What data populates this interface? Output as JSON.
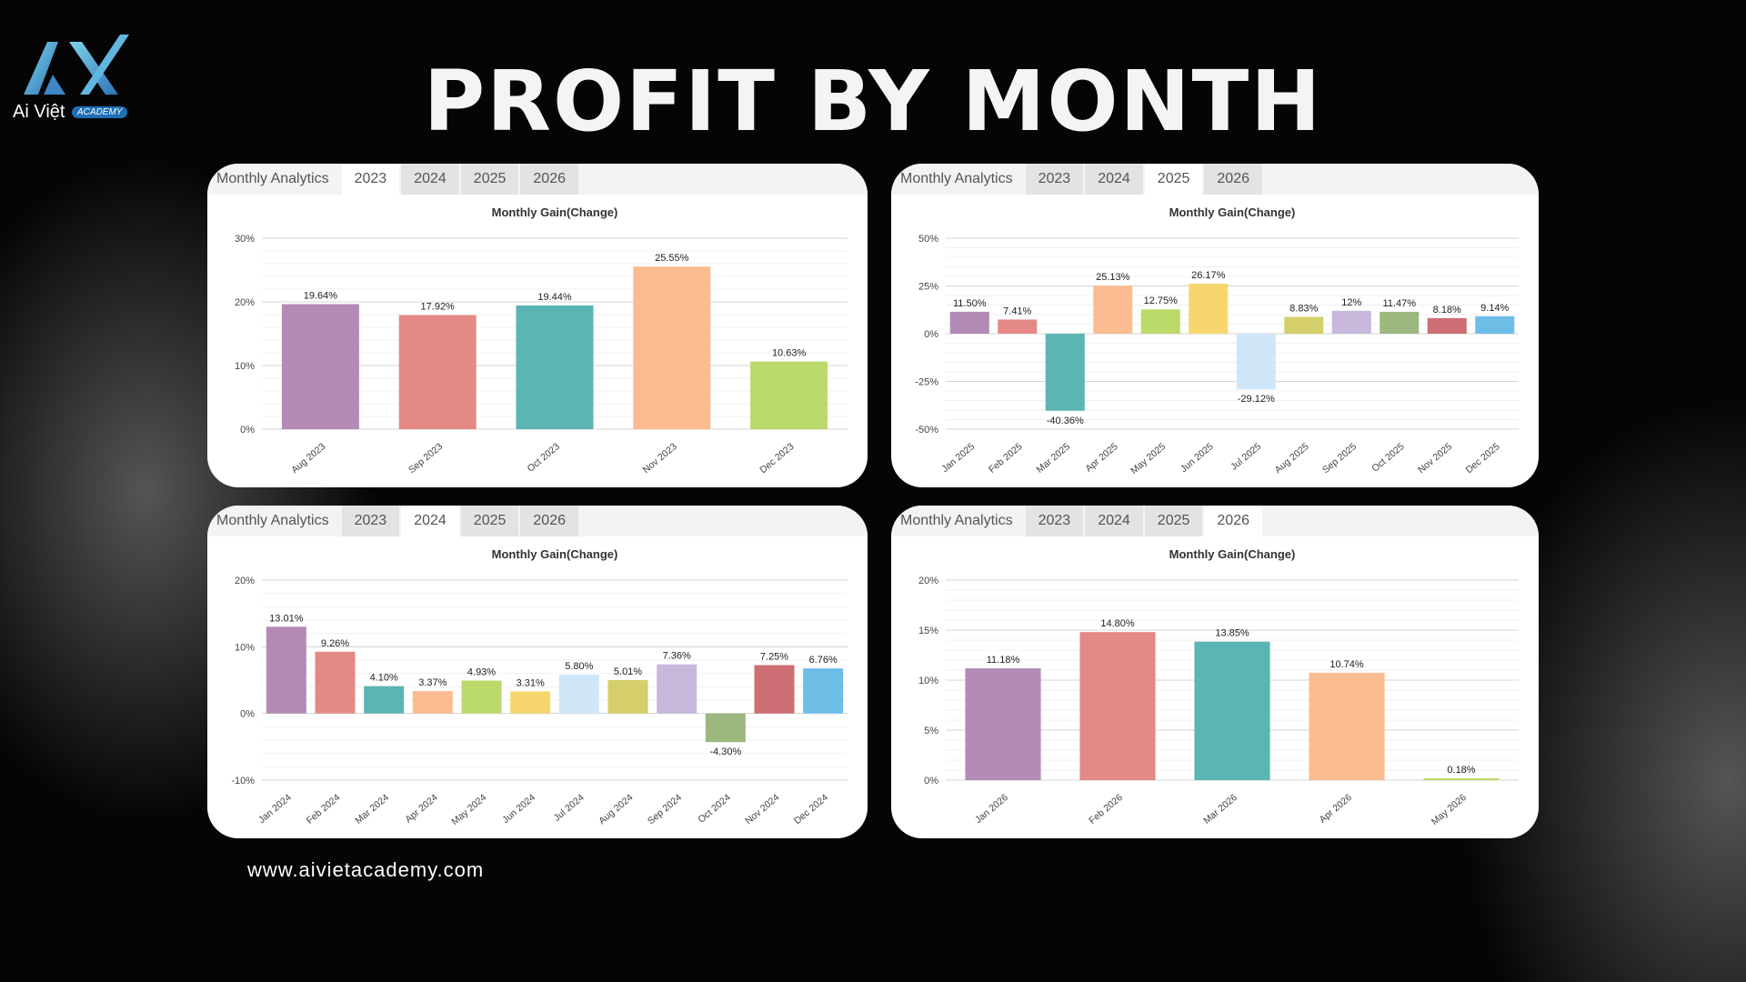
{
  "header": {
    "title": "PROFIT BY MONTH",
    "logo_text": "Ai Việt",
    "logo_badge": "ACADEMY"
  },
  "footer": {
    "url": "www.aivietacademy.com"
  },
  "tab_label": "Monthly Analytics",
  "years": [
    "2023",
    "2024",
    "2025",
    "2026"
  ],
  "colors": [
    "#b48ab6",
    "#e58986",
    "#5bb5b3",
    "#fbbc92",
    "#bcd96c",
    "#f7d76d",
    "#cfe6f8",
    "#d4cf6a",
    "#c8b8dc",
    "#9cb87e",
    "#cc6e73",
    "#6ebde7"
  ],
  "chart_data": [
    {
      "type": "bar",
      "active_year": "2023",
      "title": "Monthly Gain(Change)",
      "categories": [
        "Aug 2023",
        "Sep 2023",
        "Oct 2023",
        "Nov 2023",
        "Dec 2023"
      ],
      "values": [
        19.64,
        17.92,
        19.44,
        25.55,
        10.63
      ],
      "labels": [
        "19.64%",
        "17.92%",
        "19.44%",
        "25.55%",
        "10.63%"
      ],
      "ylim": [
        0,
        30
      ],
      "yticks": [
        0,
        10,
        20,
        30
      ],
      "ytick_labels": [
        "0%",
        "10%",
        "20%",
        "30%"
      ],
      "colors": [
        "#b48ab6",
        "#e58986",
        "#5bb5b3",
        "#fbbc92",
        "#bcd96c"
      ]
    },
    {
      "type": "bar",
      "active_year": "2025",
      "title": "Monthly Gain(Change)",
      "categories": [
        "Jan 2025",
        "Feb 2025",
        "Mar 2025",
        "Apr 2025",
        "May 2025",
        "Jun 2025",
        "Jul 2025",
        "Aug 2025",
        "Sep 2025",
        "Oct 2025",
        "Nov 2025",
        "Dec 2025"
      ],
      "values": [
        11.5,
        7.41,
        -40.36,
        25.13,
        12.75,
        26.17,
        -29.12,
        8.83,
        12,
        11.47,
        8.18,
        9.14
      ],
      "labels": [
        "11.50%",
        "7.41%",
        "-40.36%",
        "25.13%",
        "12.75%",
        "26.17%",
        "-29.12%",
        "8.83%",
        "12%",
        "11.47%",
        "8.18%",
        "9.14%"
      ],
      "ylim": [
        -50,
        50
      ],
      "yticks": [
        -50,
        -25,
        0,
        25,
        50
      ],
      "ytick_labels": [
        "-50%",
        "-25%",
        "0%",
        "25%",
        "50%"
      ],
      "colors": [
        "#b48ab6",
        "#e58986",
        "#5bb5b3",
        "#fbbc92",
        "#bcd96c",
        "#f7d76d",
        "#cfe6f8",
        "#d4cf6a",
        "#c8b8dc",
        "#9cb87e",
        "#cc6e73",
        "#6ebde7"
      ]
    },
    {
      "type": "bar",
      "active_year": "2024",
      "title": "Monthly Gain(Change)",
      "categories": [
        "Jan 2024",
        "Feb 2024",
        "Mar 2024",
        "Apr 2024",
        "May 2024",
        "Jun 2024",
        "Jul 2024",
        "Aug 2024",
        "Sep 2024",
        "Oct 2024",
        "Nov 2024",
        "Dec 2024"
      ],
      "values": [
        13.01,
        9.26,
        4.1,
        3.37,
        4.93,
        3.31,
        5.8,
        5.01,
        7.36,
        -4.3,
        7.25,
        6.76
      ],
      "labels": [
        "13.01%",
        "9.26%",
        "4.10%",
        "3.37%",
        "4.93%",
        "3.31%",
        "5.80%",
        "5.01%",
        "7.36%",
        "-4.30%",
        "7.25%",
        "6.76%"
      ],
      "ylim": [
        -10,
        20
      ],
      "yticks": [
        -10,
        0,
        10,
        20
      ],
      "ytick_labels": [
        "-10%",
        "0%",
        "10%",
        "20%"
      ],
      "colors": [
        "#b48ab6",
        "#e58986",
        "#5bb5b3",
        "#fbbc92",
        "#bcd96c",
        "#f7d76d",
        "#cfe6f8",
        "#d4cf6a",
        "#c8b8dc",
        "#9cb87e",
        "#cc6e73",
        "#6ebde7"
      ]
    },
    {
      "type": "bar",
      "active_year": "2026",
      "title": "Monthly Gain(Change)",
      "categories": [
        "Jan 2026",
        "Feb 2026",
        "Mar 2026",
        "Apr 2026",
        "May 2026"
      ],
      "values": [
        11.18,
        14.8,
        13.85,
        10.74,
        0.18
      ],
      "labels": [
        "11.18%",
        "14.80%",
        "13.85%",
        "10.74%",
        "0.18%"
      ],
      "ylim": [
        0,
        20
      ],
      "yticks": [
        0,
        5,
        10,
        15,
        20
      ],
      "ytick_labels": [
        "0%",
        "5%",
        "10%",
        "15%",
        "20%"
      ],
      "colors": [
        "#b48ab6",
        "#e58986",
        "#5bb5b3",
        "#fbbc92",
        "#bcd96c"
      ]
    }
  ]
}
